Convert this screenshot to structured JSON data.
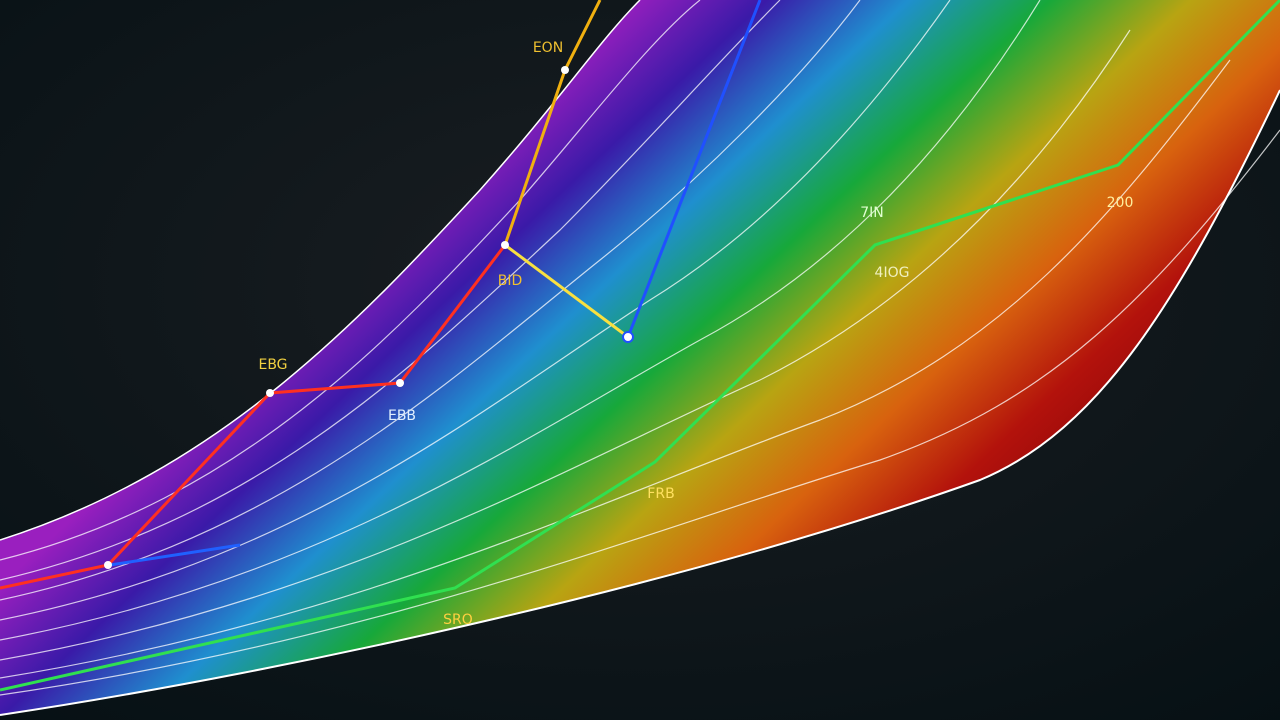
{
  "labels": [
    "EON",
    "BID",
    "EBG",
    "EBB",
    "7IN",
    "4IOG",
    "FRB",
    "SRO",
    "200"
  ]
}
